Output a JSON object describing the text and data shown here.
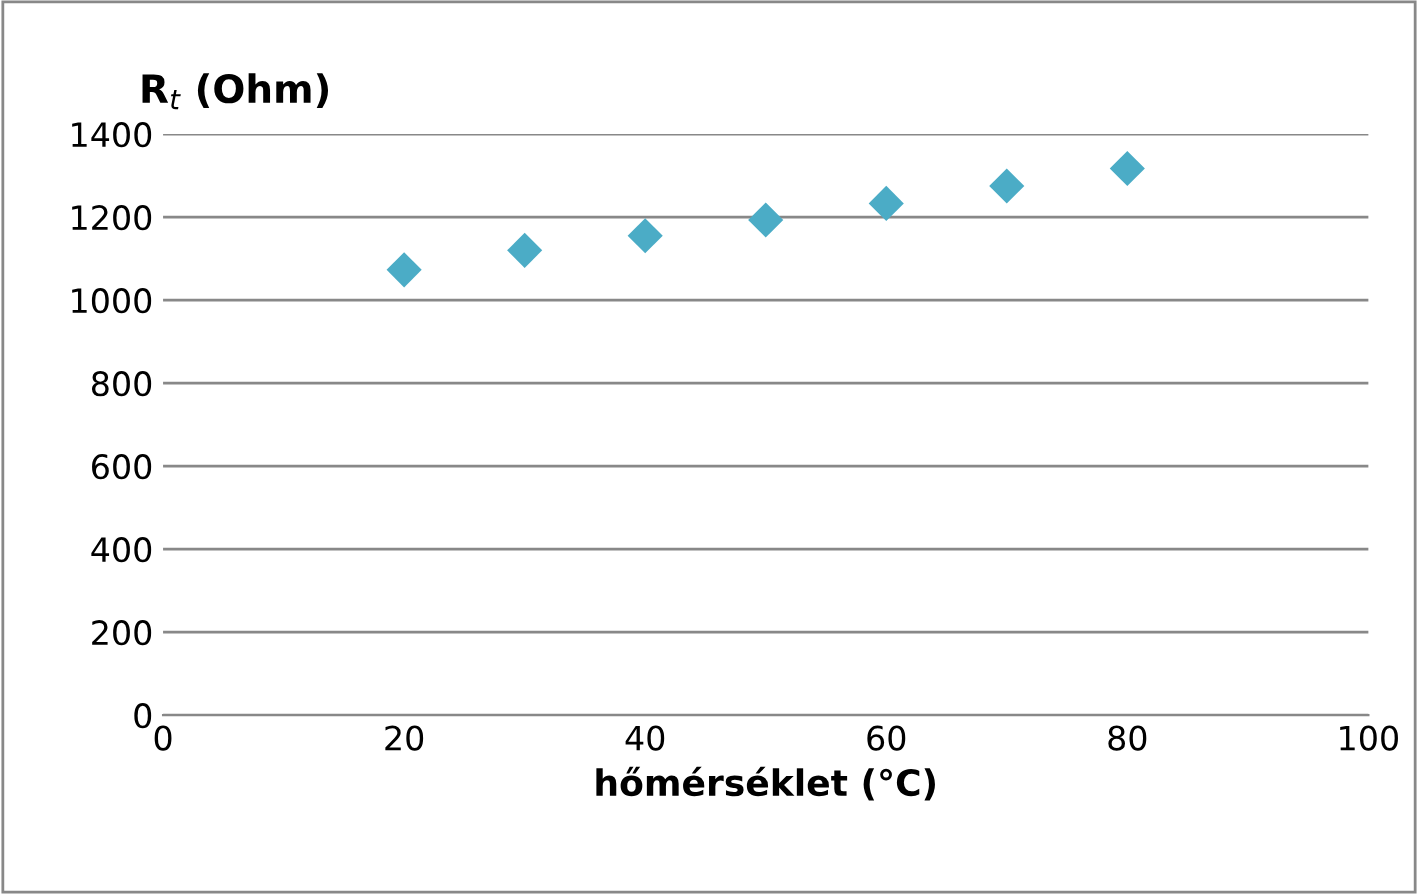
{
  "chart_data": {
    "type": "scatter",
    "ylabel": "R$_{t}$ (Ohm)",
    "xlabel": "hőmérséklet (°C)",
    "x": [
      20,
      30,
      40,
      50,
      60,
      70,
      80
    ],
    "series": [
      {
        "color": "#4bacc6",
        "values": [
          1073,
          1120,
          1155,
          1193,
          1233,
          1275,
          1317
        ]
      }
    ],
    "xlim": [
      0,
      100
    ],
    "xticks": [
      0,
      20,
      40,
      60,
      80,
      100
    ],
    "ylim": [
      0,
      1400
    ],
    "yticks": [
      0,
      200,
      400,
      600,
      800,
      1000,
      1200,
      1400
    ],
    "grid": "y",
    "marker": "diamond",
    "legend": false
  }
}
